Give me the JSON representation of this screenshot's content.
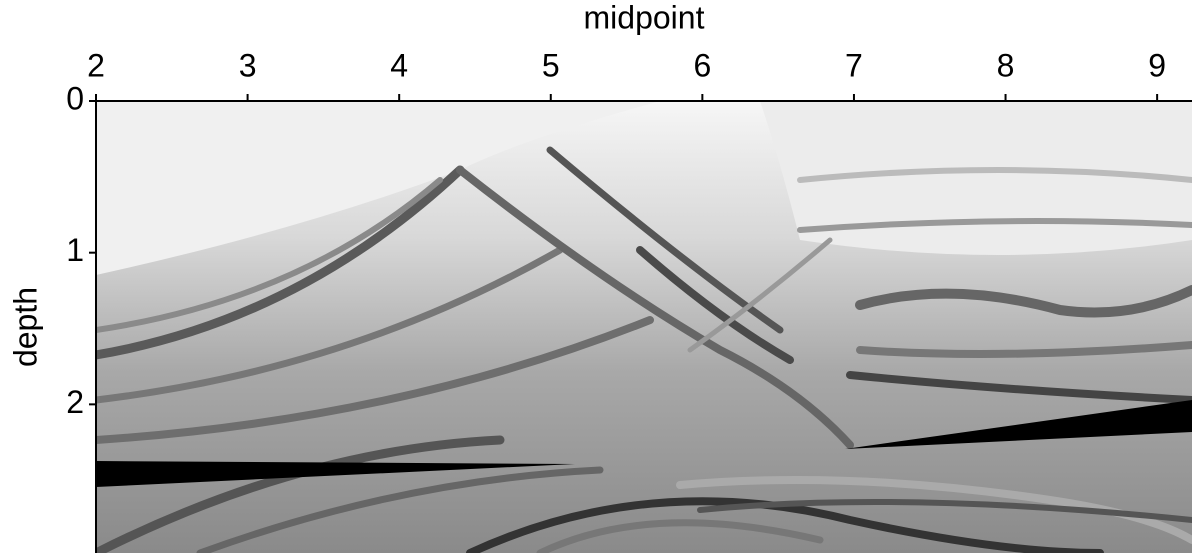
{
  "chart_data": {
    "type": "image",
    "xlabel": "midpoint",
    "ylabel": "depth",
    "xlim": [
      2,
      9.23
    ],
    "xticks": [
      2,
      3,
      4,
      5,
      6,
      7,
      8,
      9
    ],
    "xaxis_position": "top",
    "ylim": [
      0,
      2.98
    ],
    "yticks": [
      0,
      1,
      2
    ],
    "y_inverted": true,
    "colormap": "gray"
  }
}
